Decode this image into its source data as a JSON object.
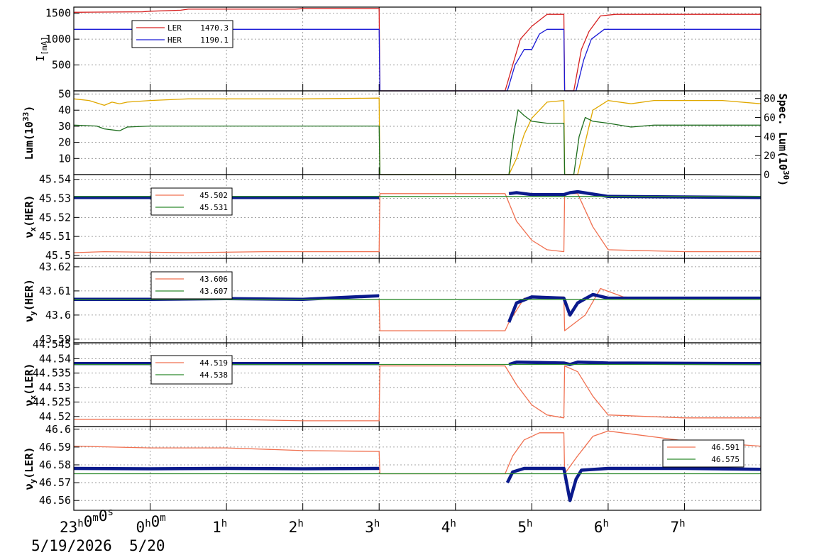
{
  "time_axis": {
    "min_h": -1,
    "max_h": 8.0,
    "ticks": [
      {
        "h": -1,
        "label": "23",
        "sup": "h",
        "label2": "0",
        "sup2": "m",
        "label3": "0",
        "sup3": "s"
      },
      {
        "h": 0,
        "label": "0",
        "sup": "h",
        "label2": "0",
        "sup2": "m"
      },
      {
        "h": 1,
        "label": "1",
        "sup": "h"
      },
      {
        "h": 2,
        "label": "2",
        "sup": "h"
      },
      {
        "h": 3,
        "label": "3",
        "sup": "h"
      },
      {
        "h": 4,
        "label": "4",
        "sup": "h"
      },
      {
        "h": 5,
        "label": "5",
        "sup": "h"
      },
      {
        "h": 6,
        "label": "6",
        "sup": "h"
      },
      {
        "h": 7,
        "label": "7",
        "sup": "h"
      }
    ],
    "date1": "5/19/2026",
    "date2": "5/20"
  },
  "colors": {
    "ler": "#d62020",
    "her": "#1a1ad6",
    "lum": "#e0a800",
    "spec": "#1e6e1e",
    "set": "#f07050",
    "meas": "#0a1a8c",
    "ref": "#2e8b2e",
    "grid": "#888888"
  },
  "chart_data": [
    {
      "type": "line",
      "panel": "current",
      "ylabel": "I",
      "ylabel_sub": "[mA]",
      "ylim": [
        0,
        1620
      ],
      "yticks": [
        "500",
        "1000",
        "1500"
      ],
      "ytick_values": [
        500,
        1000,
        1500
      ],
      "legend": [
        {
          "name": "LER",
          "value": "1470.3"
        },
        {
          "name": "HER",
          "value": "1190.1"
        }
      ],
      "series": [
        {
          "name": "LER",
          "x": [
            -1,
            -0.1,
            0.0,
            0.4,
            0.5,
            1.9,
            2.0,
            3.0,
            3.01,
            4.65,
            4.75,
            4.85,
            5.0,
            5.2,
            5.42,
            5.43,
            5.55,
            5.65,
            5.75,
            5.9,
            6.1,
            8.0
          ],
          "y": [
            1520,
            1530,
            1540,
            1560,
            1580,
            1580,
            1590,
            1590,
            0,
            0,
            500,
            1000,
            1250,
            1480,
            1480,
            0,
            0,
            800,
            1150,
            1450,
            1480,
            1480
          ]
        },
        {
          "name": "HER",
          "x": [
            -1,
            3.0,
            3.01,
            4.68,
            4.78,
            4.9,
            5.0,
            5.1,
            5.2,
            5.42,
            5.43,
            5.58,
            5.68,
            5.78,
            5.95,
            8.0
          ],
          "y": [
            1190,
            1190,
            0,
            0,
            500,
            800,
            800,
            1100,
            1190,
            1190,
            0,
            0,
            600,
            1000,
            1190,
            1190
          ]
        }
      ]
    },
    {
      "type": "line",
      "panel": "luminosity",
      "ylabel": "Lum(10",
      "ylabel_sup": "33",
      "ylabel_end": ")",
      "ylim": [
        0,
        52
      ],
      "yticks": [
        "10",
        "20",
        "30",
        "40",
        "50"
      ],
      "ytick_values": [
        10,
        20,
        30,
        40,
        50
      ],
      "y2label": "Spec. Lum(10",
      "y2label_sup": "30",
      "y2label_end": ")",
      "y2lim": [
        0,
        88
      ],
      "y2ticks": [
        "0",
        "20",
        "40",
        "60",
        "80"
      ],
      "y2tick_values": [
        0,
        20,
        40,
        60,
        80
      ],
      "series": [
        {
          "name": "Lum",
          "x": [
            -1,
            -0.8,
            -0.6,
            -0.5,
            -0.4,
            -0.3,
            0,
            0.5,
            1,
            2,
            3.0,
            3.01,
            4.7,
            4.8,
            4.9,
            5.0,
            5.2,
            5.42,
            5.43,
            5.6,
            5.7,
            5.8,
            6.0,
            6.3,
            6.6,
            7.0,
            7.5,
            8.0
          ],
          "y": [
            47,
            46,
            43,
            45,
            44,
            45,
            46,
            47,
            47,
            47,
            47.5,
            0,
            0,
            10,
            25,
            35,
            45,
            46,
            0,
            0,
            20,
            40,
            46,
            44,
            46,
            46,
            46,
            44
          ]
        },
        {
          "name": "Spec. Lum",
          "axis": "y2",
          "x": [
            -1,
            -0.7,
            -0.6,
            -0.4,
            -0.3,
            0,
            1,
            2,
            3.0,
            3.01,
            4.7,
            4.76,
            4.82,
            4.9,
            5.0,
            5.2,
            5.42,
            5.43,
            5.55,
            5.62,
            5.7,
            5.8,
            6.0,
            6.3,
            6.6,
            7.0,
            8.0
          ],
          "y": [
            52,
            51,
            48,
            46,
            50,
            51,
            51,
            51,
            51,
            0,
            0,
            40,
            68,
            62,
            56,
            54,
            54,
            0,
            0,
            40,
            60,
            56,
            54,
            50,
            52,
            52,
            52
          ]
        }
      ]
    },
    {
      "type": "line",
      "panel": "nux_her",
      "ylabel": "ν",
      "ylabel_sub": "x",
      "ylabel_end": "(HER)",
      "ylim": [
        45.4985,
        45.5425
      ],
      "yticks": [
        "45.5",
        "45.51",
        "45.52",
        "45.53",
        "45.54"
      ],
      "ytick_values": [
        45.5,
        45.51,
        45.52,
        45.53,
        45.54
      ],
      "legend": [
        {
          "name": "set",
          "value": "45.502"
        },
        {
          "name": "ref",
          "value": "45.531"
        }
      ],
      "series": [
        {
          "name": "set",
          "x": [
            -1,
            -0.6,
            0.5,
            1.5,
            3.0,
            3.01,
            4.65,
            4.8,
            5.0,
            5.2,
            5.42,
            5.43,
            5.6,
            5.8,
            6.0,
            7.0,
            8.0
          ],
          "y": [
            45.5015,
            45.502,
            45.5015,
            45.502,
            45.502,
            45.5325,
            45.5325,
            45.518,
            45.508,
            45.503,
            45.502,
            45.5325,
            45.5325,
            45.515,
            45.503,
            45.502,
            45.502
          ]
        },
        {
          "name": "meas",
          "x": [
            -1,
            3.0,
            3.01,
            4.65,
            4.7,
            4.8,
            5.0,
            5.42,
            5.5,
            5.6,
            6.0,
            8.0
          ],
          "y": [
            45.5305,
            45.5305,
            null,
            null,
            45.5325,
            45.533,
            45.532,
            45.532,
            45.533,
            45.5335,
            45.531,
            45.5305
          ]
        },
        {
          "name": "ref",
          "x": [
            -1,
            8.0
          ],
          "y": [
            45.531,
            45.531
          ]
        }
      ]
    },
    {
      "type": "line",
      "panel": "nuy_her",
      "ylabel": "ν",
      "ylabel_sub": "y",
      "ylabel_end": "(HER)",
      "ylim": [
        43.5885,
        43.6235
      ],
      "yticks": [
        "43.59",
        "43.6",
        "43.61",
        "43.62"
      ],
      "ytick_values": [
        43.59,
        43.6,
        43.61,
        43.62
      ],
      "legend": [
        {
          "name": "set",
          "value": "43.606"
        },
        {
          "name": "ref",
          "value": "43.607"
        }
      ],
      "series": [
        {
          "name": "set",
          "x": [
            -1,
            0,
            1,
            2,
            3.0,
            3.01,
            4.65,
            4.7,
            4.9,
            5.2,
            5.42,
            5.43,
            5.7,
            5.9,
            6.2,
            7.0,
            8.0
          ],
          "y": [
            43.6065,
            43.6062,
            43.6065,
            43.6065,
            43.6065,
            43.5935,
            43.5935,
            43.597,
            43.607,
            43.6075,
            43.6075,
            43.5935,
            43.6,
            43.611,
            43.6075,
            43.6065,
            43.6065
          ]
        },
        {
          "name": "meas",
          "x": [
            -1,
            0,
            1,
            2,
            3.0,
            3.01,
            4.65,
            4.7,
            4.8,
            5.0,
            5.42,
            5.5,
            5.6,
            5.8,
            6.0,
            8.0
          ],
          "y": [
            43.6065,
            43.6065,
            43.6068,
            43.6065,
            43.608,
            null,
            null,
            43.597,
            43.605,
            43.6075,
            43.607,
            43.6,
            43.605,
            43.6085,
            43.607,
            43.607
          ]
        },
        {
          "name": "ref",
          "x": [
            -1,
            8.0
          ],
          "y": [
            43.6065,
            43.6065
          ]
        }
      ]
    },
    {
      "type": "line",
      "panel": "nux_ler",
      "ylabel": "ν",
      "ylabel_sub": "x",
      "ylabel_end": "(LER)",
      "ylim": [
        44.5165,
        44.5455
      ],
      "yticks": [
        "44.52",
        "44.525",
        "44.53",
        "44.535",
        "44.54",
        "44.545"
      ],
      "ytick_values": [
        44.52,
        44.525,
        44.53,
        44.535,
        44.54,
        44.545
      ],
      "legend": [
        {
          "name": "set",
          "value": "44.519"
        },
        {
          "name": "ref",
          "value": "44.538"
        }
      ],
      "series": [
        {
          "name": "set",
          "x": [
            -1,
            1,
            2,
            3.0,
            3.01,
            4.65,
            4.8,
            5.0,
            5.2,
            5.42,
            5.43,
            5.6,
            5.8,
            6.0,
            7.0,
            8.0
          ],
          "y": [
            44.519,
            44.519,
            44.5185,
            44.5185,
            44.5375,
            44.5375,
            44.531,
            44.524,
            44.5205,
            44.5195,
            44.5375,
            44.5355,
            44.527,
            44.5205,
            44.5195,
            44.5195
          ]
        },
        {
          "name": "meas",
          "x": [
            -1,
            3.0,
            3.01,
            4.65,
            4.7,
            4.8,
            5.42,
            5.5,
            5.6,
            6.0,
            8.0
          ],
          "y": [
            44.5383,
            44.5383,
            null,
            null,
            44.538,
            44.5388,
            44.5385,
            44.538,
            44.5388,
            44.5385,
            44.5383
          ]
        },
        {
          "name": "ref",
          "x": [
            -1,
            8.0
          ],
          "y": [
            44.538,
            44.538
          ]
        }
      ]
    },
    {
      "type": "line",
      "panel": "nuy_ler",
      "ylabel": "ν",
      "ylabel_sub": "y",
      "ylabel_end": "(LER)",
      "ylim": [
        46.5545,
        46.6015
      ],
      "yticks": [
        "46.56",
        "46.57",
        "46.58",
        "46.59",
        "46.6"
      ],
      "ytick_values": [
        46.56,
        46.57,
        46.58,
        46.59,
        46.6
      ],
      "legend": [
        {
          "name": "set",
          "value": "46.591"
        },
        {
          "name": "ref",
          "value": "46.575"
        }
      ],
      "series": [
        {
          "name": "set",
          "x": [
            -1,
            0,
            1,
            2,
            3.0,
            3.01,
            4.65,
            4.75,
            4.9,
            5.1,
            5.42,
            5.43,
            5.6,
            5.8,
            6.0,
            7.0,
            8.0
          ],
          "y": [
            46.5905,
            46.5895,
            46.5895,
            46.588,
            46.5875,
            46.575,
            46.575,
            46.585,
            46.594,
            46.598,
            46.598,
            46.575,
            46.585,
            46.596,
            46.599,
            46.5935,
            46.5905
          ]
        },
        {
          "name": "meas",
          "x": [
            -1,
            0,
            1,
            2,
            3.0,
            3.01,
            4.65,
            4.68,
            4.75,
            4.9,
            5.42,
            5.5,
            5.58,
            5.65,
            6.0,
            7.0,
            8.0
          ],
          "y": [
            46.578,
            46.5778,
            46.578,
            46.5778,
            46.578,
            null,
            null,
            46.57,
            46.576,
            46.578,
            46.578,
            46.56,
            46.572,
            46.577,
            46.578,
            46.578,
            46.5775
          ]
        },
        {
          "name": "ref",
          "x": [
            -1,
            8.0
          ],
          "y": [
            46.575,
            46.575
          ]
        }
      ]
    }
  ]
}
